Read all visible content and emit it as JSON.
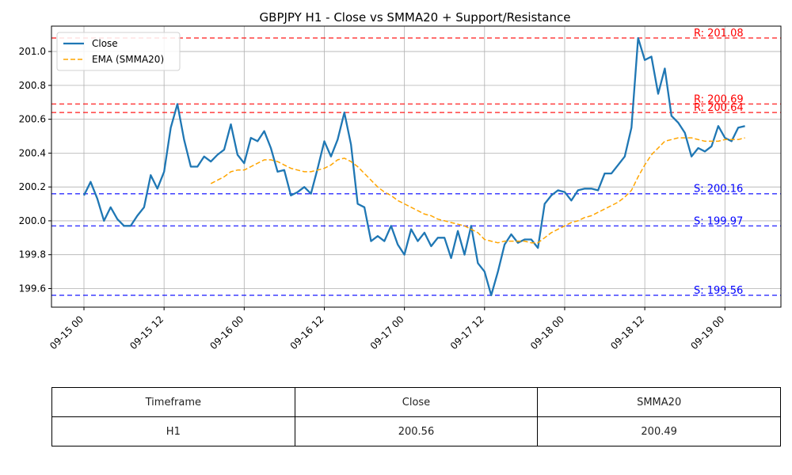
{
  "chart_data": {
    "type": "line",
    "title": "GBPJPY H1 - Close vs SMMA20 + Support/Resistance",
    "xlabel": "",
    "ylabel": "",
    "ylim": [
      199.49,
      201.15
    ],
    "grid": true,
    "legend_position": "upper-left",
    "x_ticks": [
      "09-15 00",
      "09-15 12",
      "09-16 00",
      "09-16 12",
      "09-17 00",
      "09-17 12",
      "09-18 00",
      "09-18 12",
      "09-19 00"
    ],
    "y_ticks": [
      "199.6",
      "199.8",
      "200.0",
      "200.2",
      "200.4",
      "200.6",
      "200.8",
      "201.0"
    ],
    "x_hours": [
      0,
      1,
      2,
      3,
      4,
      5,
      6,
      7,
      8,
      9,
      10,
      11,
      12,
      13,
      14,
      15,
      16,
      17,
      18,
      19,
      20,
      21,
      22,
      23,
      24,
      25,
      26,
      27,
      28,
      29,
      30,
      31,
      32,
      33,
      34,
      35,
      36,
      37,
      38,
      39,
      40,
      41,
      42,
      43,
      44,
      45,
      46,
      47,
      48,
      49,
      50,
      51,
      52,
      53,
      54,
      55,
      56,
      57,
      58,
      59,
      60,
      61,
      62,
      63,
      64,
      65,
      66,
      67,
      68,
      69,
      70,
      71,
      72,
      73,
      74,
      75,
      76,
      77,
      78,
      79,
      80,
      81,
      82,
      83,
      84,
      85,
      86,
      87,
      88,
      89,
      90,
      91,
      92,
      93,
      94,
      95,
      96,
      97,
      98,
      99
    ],
    "series": [
      {
        "name": "Close",
        "color": "#1f77b4",
        "style": "solid",
        "values": [
          200.15,
          200.23,
          200.13,
          200.0,
          200.08,
          200.01,
          199.97,
          199.97,
          200.03,
          200.08,
          200.27,
          200.19,
          200.29,
          200.55,
          200.69,
          200.48,
          200.32,
          200.32,
          200.38,
          200.35,
          200.39,
          200.42,
          200.57,
          200.39,
          200.34,
          200.49,
          200.47,
          200.53,
          200.43,
          200.29,
          200.3,
          200.15,
          200.17,
          200.2,
          200.16,
          200.31,
          200.47,
          200.38,
          200.48,
          200.64,
          200.45,
          200.1,
          200.08,
          199.88,
          199.91,
          199.88,
          199.97,
          199.86,
          199.8,
          199.95,
          199.88,
          199.93,
          199.85,
          199.9,
          199.9,
          199.78,
          199.94,
          199.8,
          199.97,
          199.75,
          199.7,
          199.56,
          199.7,
          199.86,
          199.92,
          199.87,
          199.89,
          199.89,
          199.84,
          200.1,
          200.15,
          200.18,
          200.17,
          200.12,
          200.18,
          200.19,
          200.19,
          200.18,
          200.28,
          200.28,
          200.33,
          200.38,
          200.55,
          201.08,
          200.95,
          200.97,
          200.75,
          200.9,
          200.62,
          200.58,
          200.52,
          200.38,
          200.43,
          200.41,
          200.44,
          200.56,
          200.49,
          200.47,
          200.55,
          200.56
        ]
      },
      {
        "name": "EMA (SMMA20)",
        "color": "#ffa500",
        "style": "dashed",
        "values": [
          null,
          null,
          null,
          null,
          null,
          null,
          null,
          null,
          null,
          null,
          null,
          null,
          null,
          null,
          null,
          null,
          null,
          null,
          null,
          200.22,
          200.24,
          200.26,
          200.29,
          200.3,
          200.3,
          200.32,
          200.34,
          200.36,
          200.36,
          200.35,
          200.33,
          200.31,
          200.3,
          200.29,
          200.29,
          200.3,
          200.31,
          200.33,
          200.36,
          200.37,
          200.35,
          200.32,
          200.28,
          200.24,
          200.2,
          200.17,
          200.15,
          200.12,
          200.1,
          200.08,
          200.06,
          200.04,
          200.03,
          200.01,
          200.0,
          199.99,
          199.98,
          199.97,
          199.95,
          199.93,
          199.89,
          199.88,
          199.87,
          199.88,
          199.88,
          199.88,
          199.88,
          199.87,
          199.87,
          199.9,
          199.93,
          199.95,
          199.97,
          199.99,
          200.0,
          200.02,
          200.03,
          200.05,
          200.07,
          200.09,
          200.11,
          200.14,
          200.18,
          200.26,
          200.33,
          200.39,
          200.43,
          200.47,
          200.48,
          200.49,
          200.49,
          200.49,
          200.48,
          200.47,
          200.47,
          200.47,
          200.48,
          200.48,
          200.48,
          200.49
        ]
      }
    ],
    "levels": [
      {
        "kind": "resistance",
        "value": 201.08,
        "label": "R: 201.08",
        "color": "#ff0000"
      },
      {
        "kind": "resistance",
        "value": 200.69,
        "label": "R: 200.69",
        "color": "#ff0000"
      },
      {
        "kind": "resistance",
        "value": 200.64,
        "label": "R: 200.64",
        "color": "#ff0000"
      },
      {
        "kind": "support",
        "value": 200.16,
        "label": "S: 200.16",
        "color": "#0000ff"
      },
      {
        "kind": "support",
        "value": 199.97,
        "label": "S: 199.97",
        "color": "#0000ff"
      },
      {
        "kind": "support",
        "value": 199.56,
        "label": "S: 199.56",
        "color": "#0000ff"
      }
    ]
  },
  "table": {
    "headers": [
      "Timeframe",
      "Close",
      "SMMA20"
    ],
    "rows": [
      [
        "H1",
        "200.56",
        "200.49"
      ]
    ]
  }
}
